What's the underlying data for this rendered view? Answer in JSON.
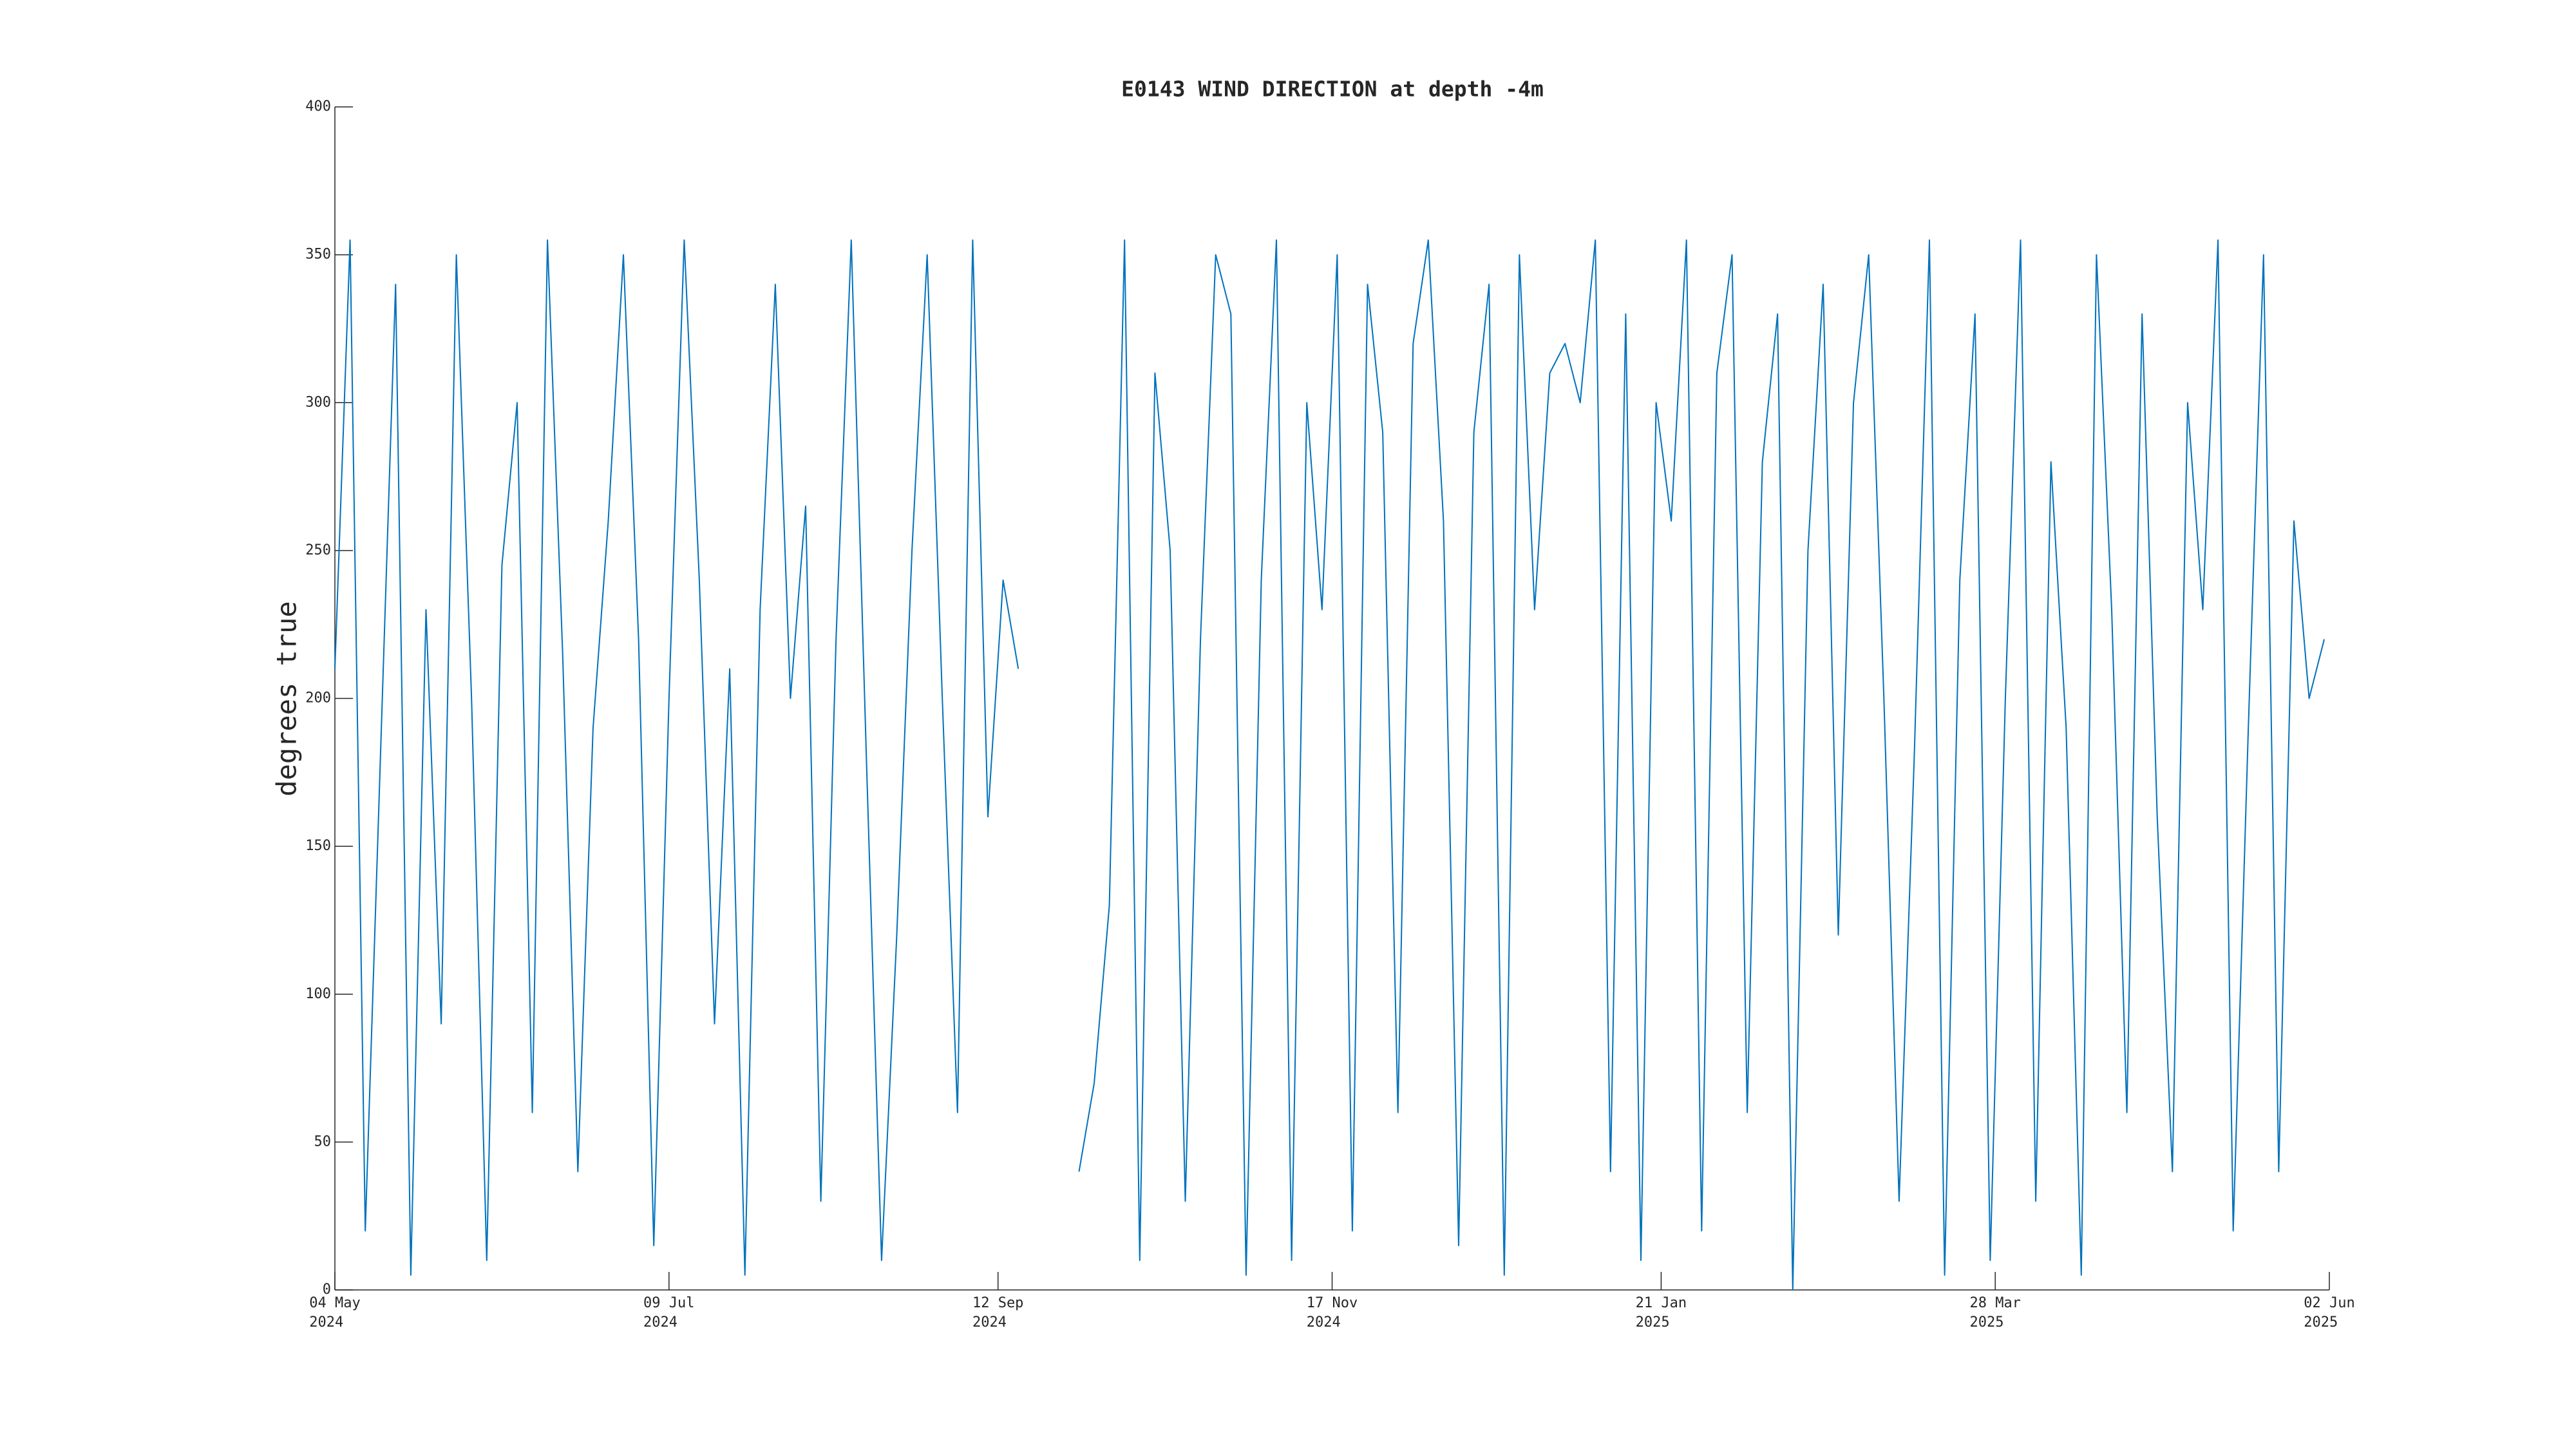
{
  "chart_data": {
    "type": "line",
    "title": "E0143 WIND DIRECTION at depth -4m",
    "y_label": "degrees true",
    "x": [
      "2024-05-04",
      "2024-05-07",
      "2024-05-10",
      "2024-05-13",
      "2024-05-16",
      "2024-05-19",
      "2024-05-22",
      "2024-05-25",
      "2024-05-28",
      "2024-05-31",
      "2024-06-03",
      "2024-06-06",
      "2024-06-09",
      "2024-06-12",
      "2024-06-15",
      "2024-06-18",
      "2024-06-21",
      "2024-06-24",
      "2024-06-27",
      "2024-06-30",
      "2024-07-03",
      "2024-07-06",
      "2024-07-09",
      "2024-07-12",
      "2024-07-15",
      "2024-07-18",
      "2024-07-21",
      "2024-07-24",
      "2024-07-27",
      "2024-07-30",
      "2024-08-02",
      "2024-08-05",
      "2024-08-08",
      "2024-08-11",
      "2024-08-14",
      "2024-08-17",
      "2024-08-20",
      "2024-08-23",
      "2024-08-26",
      "2024-08-29",
      "2024-09-01",
      "2024-09-04",
      "2024-09-07",
      "2024-09-10",
      "2024-09-13",
      "2024-09-16",
      "2024-09-19",
      "2024-09-22",
      "2024-09-25",
      "2024-09-28",
      "2024-10-01",
      "2024-10-04",
      "2024-10-07",
      "2024-10-10",
      "2024-10-13",
      "2024-10-16",
      "2024-10-19",
      "2024-10-22",
      "2024-10-25",
      "2024-10-28",
      "2024-10-31",
      "2024-11-03",
      "2024-11-06",
      "2024-11-09",
      "2024-11-12",
      "2024-11-15",
      "2024-11-18",
      "2024-11-21",
      "2024-11-24",
      "2024-11-27",
      "2024-11-30",
      "2024-12-03",
      "2024-12-06",
      "2024-12-09",
      "2024-12-12",
      "2024-12-15",
      "2024-12-18",
      "2024-12-21",
      "2024-12-24",
      "2024-12-27",
      "2024-12-30",
      "2025-01-02",
      "2025-01-05",
      "2025-01-08",
      "2025-01-11",
      "2025-01-14",
      "2025-01-17",
      "2025-01-20",
      "2025-01-23",
      "2025-01-26",
      "2025-01-29",
      "2025-02-01",
      "2025-02-04",
      "2025-02-07",
      "2025-02-10",
      "2025-02-13",
      "2025-02-16",
      "2025-02-19",
      "2025-02-22",
      "2025-02-25",
      "2025-02-28",
      "2025-03-03",
      "2025-03-06",
      "2025-03-09",
      "2025-03-12",
      "2025-03-15",
      "2025-03-18",
      "2025-03-21",
      "2025-03-24",
      "2025-03-27",
      "2025-03-30",
      "2025-04-02",
      "2025-04-05",
      "2025-04-08",
      "2025-04-11",
      "2025-04-14",
      "2025-04-17",
      "2025-04-20",
      "2025-04-23",
      "2025-04-26",
      "2025-04-29",
      "2025-05-02",
      "2025-05-05",
      "2025-05-08",
      "2025-05-11",
      "2025-05-14",
      "2025-05-17",
      "2025-05-20",
      "2025-05-23",
      "2025-05-26",
      "2025-05-29",
      "2025-06-01"
    ],
    "series": [
      {
        "color": "#0072bd",
        "values": [
          210,
          355,
          20,
          180,
          340,
          5,
          230,
          90,
          350,
          200,
          10,
          245,
          300,
          60,
          355,
          215,
          40,
          190,
          260,
          350,
          220,
          15,
          200,
          355,
          240,
          90,
          210,
          5,
          230,
          340,
          200,
          265,
          30,
          220,
          355,
          180,
          10,
          120,
          250,
          350,
          200,
          60,
          355,
          160,
          240,
          210,
          null,
          null,
          null,
          40,
          70,
          130,
          355,
          10,
          310,
          250,
          30,
          220,
          350,
          330,
          5,
          240,
          355,
          10,
          300,
          230,
          350,
          20,
          340,
          290,
          60,
          320,
          355,
          260,
          15,
          290,
          340,
          5,
          350,
          230,
          310,
          320,
          300,
          355,
          40,
          330,
          10,
          300,
          260,
          355,
          20,
          310,
          350,
          60,
          280,
          330,
          0,
          250,
          340,
          120,
          300,
          350,
          200,
          30,
          180,
          355,
          5,
          240,
          330,
          10,
          200,
          355,
          30,
          280,
          190,
          5,
          350,
          230,
          60,
          330,
          160,
          40,
          300,
          230,
          355,
          20,
          190,
          350,
          40,
          260,
          200,
          220
        ]
      }
    ],
    "xlim": [
      "2024-05-04",
      "2025-06-02"
    ],
    "xticks": [
      {
        "value": "2024-05-04",
        "label": "04 May\n2024"
      },
      {
        "value": "2024-07-09",
        "label": "09 Jul\n2024"
      },
      {
        "value": "2024-09-12",
        "label": "12 Sep\n2024"
      },
      {
        "value": "2024-11-17",
        "label": "17 Nov\n2024"
      },
      {
        "value": "2025-01-21",
        "label": "21 Jan\n2025"
      },
      {
        "value": "2025-03-28",
        "label": "28 Mar\n2025"
      },
      {
        "value": "2025-06-02",
        "label": "02 Jun\n2025"
      }
    ],
    "ylim": [
      0,
      400
    ],
    "yticks": [
      0,
      50,
      100,
      150,
      200,
      250,
      300,
      350,
      400
    ]
  }
}
